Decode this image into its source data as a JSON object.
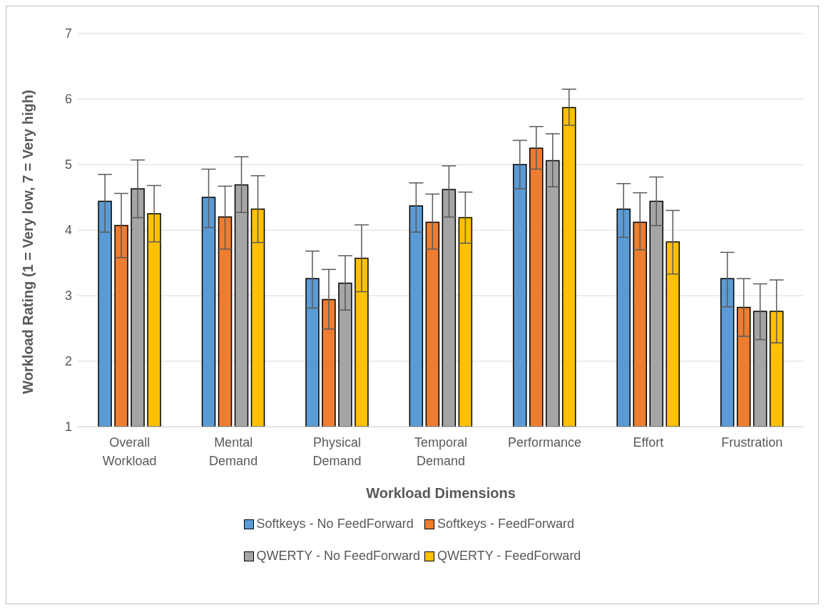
{
  "chart_data": {
    "type": "bar",
    "xlabel": "Workload Dimensions",
    "ylabel": "Workload Rating (1 = Very low, 7 = Very high)",
    "categories": [
      "Overall Workload",
      "Mental Demand",
      "Physical Demand",
      "Temporal Demand",
      "Performance",
      "Effort",
      "Frustration"
    ],
    "series": [
      {
        "name": "Softkeys - No FeedForward",
        "color": "#5b9bd5",
        "values": [
          4.44,
          4.5,
          3.26,
          4.37,
          5.0,
          4.32,
          3.26
        ],
        "errors": [
          [
            3.97,
            4.85
          ],
          [
            4.04,
            4.93
          ],
          [
            2.81,
            3.68
          ],
          [
            3.97,
            4.72
          ],
          [
            4.63,
            5.37
          ],
          [
            3.89,
            4.71
          ],
          [
            2.83,
            3.66
          ]
        ]
      },
      {
        "name": "Softkeys - FeedForward",
        "color": "#ed7d31",
        "values": [
          4.07,
          4.2,
          2.94,
          4.12,
          5.25,
          4.12,
          2.82
        ],
        "errors": [
          [
            3.58,
            4.56
          ],
          [
            3.71,
            4.67
          ],
          [
            2.49,
            3.4
          ],
          [
            3.71,
            4.55
          ],
          [
            4.93,
            5.58
          ],
          [
            3.7,
            4.57
          ],
          [
            2.38,
            3.26
          ]
        ]
      },
      {
        "name": "QWERTY - No FeedForward",
        "color": "#a5a5a5",
        "values": [
          4.63,
          4.69,
          3.19,
          4.62,
          5.06,
          4.44,
          2.76
        ],
        "errors": [
          [
            4.19,
            5.07
          ],
          [
            4.27,
            5.12
          ],
          [
            2.78,
            3.61
          ],
          [
            4.2,
            4.98
          ],
          [
            4.66,
            5.47
          ],
          [
            4.07,
            4.81
          ],
          [
            2.33,
            3.18
          ]
        ]
      },
      {
        "name": "QWERTY - FeedForward",
        "color": "#ffc000",
        "values": [
          4.25,
          4.32,
          3.57,
          4.19,
          5.87,
          3.82,
          2.76
        ],
        "errors": [
          [
            3.82,
            4.68
          ],
          [
            3.81,
            4.83
          ],
          [
            3.06,
            4.08
          ],
          [
            3.8,
            4.58
          ],
          [
            5.6,
            6.15
          ],
          [
            3.33,
            4.3
          ],
          [
            2.28,
            3.24
          ]
        ]
      }
    ],
    "ylim": [
      1,
      7
    ],
    "yticks": [
      1,
      2,
      3,
      4,
      5,
      6,
      7
    ],
    "grid": "y",
    "legend": "bottom"
  }
}
